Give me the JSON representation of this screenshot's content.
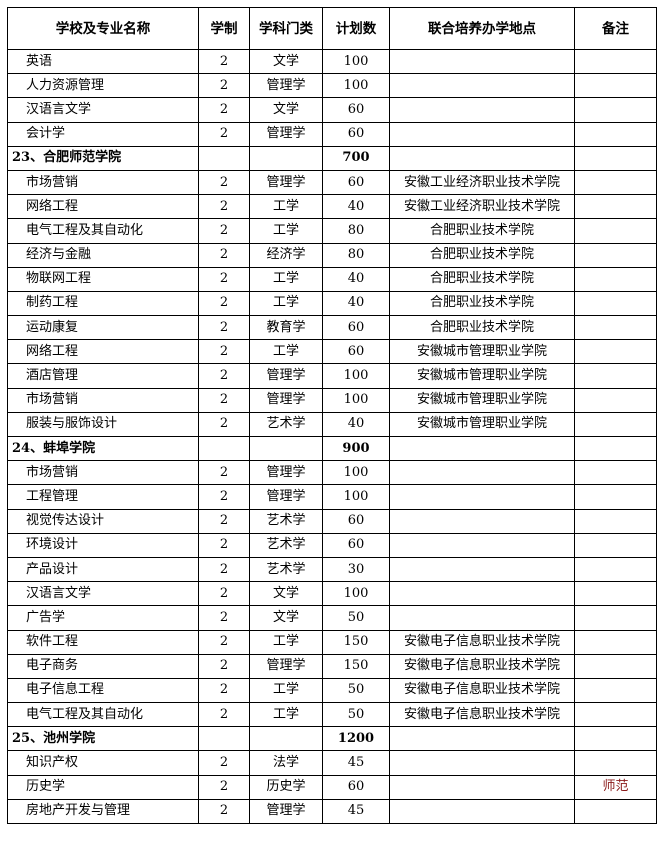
{
  "headers": [
    "学校及专业名称",
    "学制",
    "学科门类",
    "计划数",
    "联合培养办学地点",
    "备注"
  ],
  "rows": [
    {
      "type": "major",
      "name": "英语",
      "years": "2",
      "category": "文学",
      "plan": "100",
      "site": "",
      "note": ""
    },
    {
      "type": "major",
      "name": "人力资源管理",
      "years": "2",
      "category": "管理学",
      "plan": "100",
      "site": "",
      "note": ""
    },
    {
      "type": "major",
      "name": "汉语言文学",
      "years": "2",
      "category": "文学",
      "plan": "60",
      "site": "",
      "note": ""
    },
    {
      "type": "major",
      "name": "会计学",
      "years": "2",
      "category": "管理学",
      "plan": "60",
      "site": "",
      "note": ""
    },
    {
      "type": "school",
      "name": "23、合肥师范学院",
      "years": "",
      "category": "",
      "plan": "700",
      "site": "",
      "note": ""
    },
    {
      "type": "major",
      "name": "市场营销",
      "years": "2",
      "category": "管理学",
      "plan": "60",
      "site": "安徽工业经济职业技术学院",
      "note": ""
    },
    {
      "type": "major",
      "name": "网络工程",
      "years": "2",
      "category": "工学",
      "plan": "40",
      "site": "安徽工业经济职业技术学院",
      "note": ""
    },
    {
      "type": "major",
      "name": "电气工程及其自动化",
      "years": "2",
      "category": "工学",
      "plan": "80",
      "site": "合肥职业技术学院",
      "note": ""
    },
    {
      "type": "major",
      "name": "经济与金融",
      "years": "2",
      "category": "经济学",
      "plan": "80",
      "site": "合肥职业技术学院",
      "note": ""
    },
    {
      "type": "major",
      "name": "物联网工程",
      "years": "2",
      "category": "工学",
      "plan": "40",
      "site": "合肥职业技术学院",
      "note": ""
    },
    {
      "type": "major",
      "name": "制药工程",
      "years": "2",
      "category": "工学",
      "plan": "40",
      "site": "合肥职业技术学院",
      "note": ""
    },
    {
      "type": "major",
      "name": "运动康复",
      "years": "2",
      "category": "教育学",
      "plan": "60",
      "site": "合肥职业技术学院",
      "note": ""
    },
    {
      "type": "major",
      "name": "网络工程",
      "years": "2",
      "category": "工学",
      "plan": "60",
      "site": "安徽城市管理职业学院",
      "note": ""
    },
    {
      "type": "major",
      "name": "酒店管理",
      "years": "2",
      "category": "管理学",
      "plan": "100",
      "site": "安徽城市管理职业学院",
      "note": ""
    },
    {
      "type": "major",
      "name": "市场营销",
      "years": "2",
      "category": "管理学",
      "plan": "100",
      "site": "安徽城市管理职业学院",
      "note": ""
    },
    {
      "type": "major",
      "name": "服装与服饰设计",
      "years": "2",
      "category": "艺术学",
      "plan": "40",
      "site": "安徽城市管理职业学院",
      "note": ""
    },
    {
      "type": "school",
      "name": "24、蚌埠学院",
      "years": "",
      "category": "",
      "plan": "900",
      "site": "",
      "note": ""
    },
    {
      "type": "major",
      "name": "市场营销",
      "years": "2",
      "category": "管理学",
      "plan": "100",
      "site": "",
      "note": ""
    },
    {
      "type": "major",
      "name": "工程管理",
      "years": "2",
      "category": "管理学",
      "plan": "100",
      "site": "",
      "note": ""
    },
    {
      "type": "major",
      "name": "视觉传达设计",
      "years": "2",
      "category": "艺术学",
      "plan": "60",
      "site": "",
      "note": ""
    },
    {
      "type": "major",
      "name": "环境设计",
      "years": "2",
      "category": "艺术学",
      "plan": "60",
      "site": "",
      "note": ""
    },
    {
      "type": "major",
      "name": "产品设计",
      "years": "2",
      "category": "艺术学",
      "plan": "30",
      "site": "",
      "note": ""
    },
    {
      "type": "major",
      "name": "汉语言文学",
      "years": "2",
      "category": "文学",
      "plan": "100",
      "site": "",
      "note": ""
    },
    {
      "type": "major",
      "name": "广告学",
      "years": "2",
      "category": "文学",
      "plan": "50",
      "site": "",
      "note": ""
    },
    {
      "type": "major",
      "name": "软件工程",
      "years": "2",
      "category": "工学",
      "plan": "150",
      "site": "安徽电子信息职业技术学院",
      "note": ""
    },
    {
      "type": "major",
      "name": "电子商务",
      "years": "2",
      "category": "管理学",
      "plan": "150",
      "site": "安徽电子信息职业技术学院",
      "note": ""
    },
    {
      "type": "major",
      "name": "电子信息工程",
      "years": "2",
      "category": "工学",
      "plan": "50",
      "site": "安徽电子信息职业技术学院",
      "note": ""
    },
    {
      "type": "major",
      "name": "电气工程及其自动化",
      "years": "2",
      "category": "工学",
      "plan": "50",
      "site": "安徽电子信息职业技术学院",
      "note": ""
    },
    {
      "type": "school",
      "name": "25、池州学院",
      "years": "",
      "category": "",
      "plan": "1200",
      "site": "",
      "note": ""
    },
    {
      "type": "major",
      "name": "知识产权",
      "years": "2",
      "category": "法学",
      "plan": "45",
      "site": "",
      "note": ""
    },
    {
      "type": "major",
      "name": "历史学",
      "years": "2",
      "category": "历史学",
      "plan": "60",
      "site": "",
      "note": "师范"
    },
    {
      "type": "major",
      "name": "房地产开发与管理",
      "years": "2",
      "category": "管理学",
      "plan": "45",
      "site": "",
      "note": ""
    }
  ],
  "colors": {
    "text": "#000000",
    "note": "#8b1a1a",
    "border": "#000000"
  }
}
